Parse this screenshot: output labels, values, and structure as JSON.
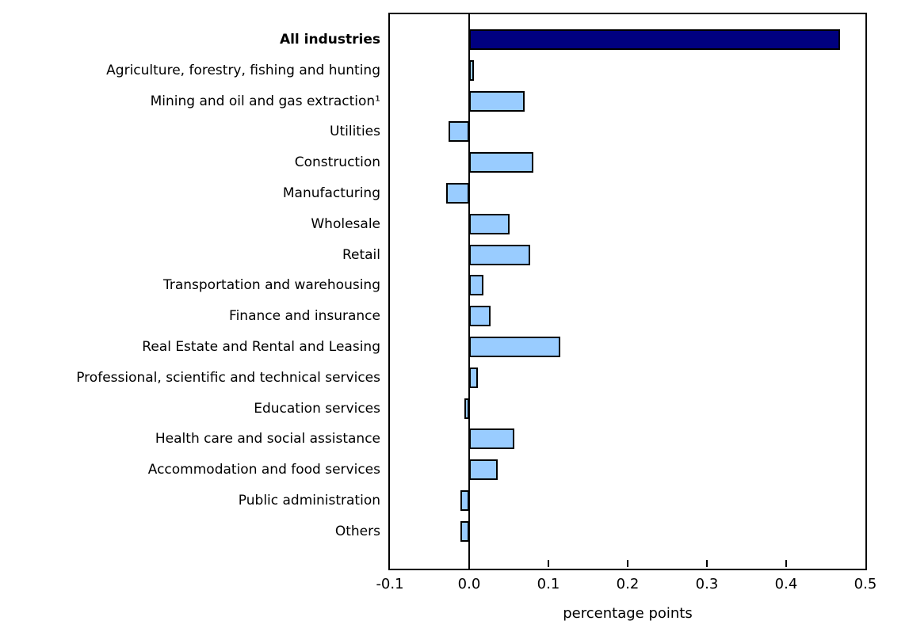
{
  "chart_data": {
    "type": "bar",
    "orientation": "horizontal",
    "title": "",
    "xlabel": "percentage points",
    "ylabel": "",
    "xlim": [
      -0.1,
      0.5
    ],
    "x_tick_labels": [
      "-0.1",
      "0.0",
      "0.1",
      "0.2",
      "0.3",
      "0.4",
      "0.5"
    ],
    "grid": false,
    "legend": false,
    "categories": [
      "All industries",
      "Agriculture, forestry, fishing and hunting",
      "Mining and oil and gas extraction¹",
      "Utilities",
      "Construction",
      "Manufacturing",
      "Wholesale",
      "Retail",
      "Transportation and warehousing",
      "Finance and insurance",
      "Real Estate and Rental and Leasing",
      "Professional, scientific and technical services",
      "Education services",
      "Health care and social assistance",
      "Accommodation and food services",
      "Public administration",
      "Others"
    ],
    "values": [
      0.468,
      0.006,
      0.07,
      -0.026,
      0.081,
      -0.029,
      0.051,
      0.077,
      0.018,
      0.027,
      0.115,
      0.011,
      -0.006,
      0.057,
      0.036,
      -0.011,
      -0.011
    ],
    "highlight_index": 0,
    "colors": {
      "highlight_bar": "#000080",
      "bar": "#99CCFF",
      "bar_border": "#000000",
      "axis": "#000000",
      "text": "#000000",
      "background": "#FFFFFF"
    }
  }
}
